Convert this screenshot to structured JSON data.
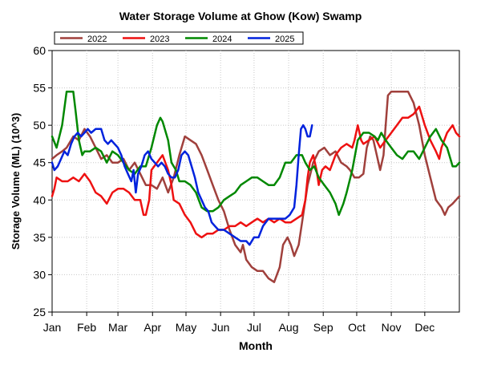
{
  "chart_data": {
    "type": "line",
    "title": "Water Storage Volume at Ghow (Kow) Swamp",
    "xlabel": "Month",
    "ylabel": "Storage Volume (ML) (10^3)",
    "x_unit": "day_of_year",
    "xlim": [
      1,
      366
    ],
    "ylim": [
      25,
      60
    ],
    "yticks": [
      25,
      30,
      35,
      40,
      45,
      50,
      55,
      60
    ],
    "month_labels": [
      "Jan",
      "Feb",
      "Mar",
      "Apr",
      "May",
      "Jun",
      "Jul",
      "Aug",
      "Sep",
      "Oct",
      "Nov",
      "Dec"
    ],
    "month_starts": [
      1,
      32,
      60,
      91,
      121,
      152,
      182,
      213,
      244,
      274,
      305,
      335
    ],
    "grid": true,
    "legend_position": "top-left",
    "series": [
      {
        "name": "2022",
        "color": "#a0403c",
        "points": [
          [
            1,
            45.5
          ],
          [
            5,
            46
          ],
          [
            10,
            46.5
          ],
          [
            14,
            47
          ],
          [
            20,
            48.5
          ],
          [
            25,
            48
          ],
          [
            30,
            49.5
          ],
          [
            35,
            48.5
          ],
          [
            40,
            47
          ],
          [
            45,
            45.5
          ],
          [
            50,
            46
          ],
          [
            55,
            45
          ],
          [
            60,
            45
          ],
          [
            65,
            45.5
          ],
          [
            70,
            44
          ],
          [
            75,
            45
          ],
          [
            80,
            43.5
          ],
          [
            85,
            42
          ],
          [
            90,
            42
          ],
          [
            95,
            41.5
          ],
          [
            100,
            43
          ],
          [
            105,
            41
          ],
          [
            110,
            43
          ],
          [
            115,
            46
          ],
          [
            120,
            48.5
          ],
          [
            125,
            48
          ],
          [
            130,
            47.5
          ],
          [
            135,
            46
          ],
          [
            140,
            44
          ],
          [
            145,
            42
          ],
          [
            150,
            40
          ],
          [
            155,
            38.5
          ],
          [
            160,
            36
          ],
          [
            165,
            34
          ],
          [
            170,
            33
          ],
          [
            172,
            34
          ],
          [
            175,
            32
          ],
          [
            180,
            31
          ],
          [
            185,
            30.5
          ],
          [
            190,
            30.5
          ],
          [
            195,
            29.5
          ],
          [
            200,
            29
          ],
          [
            205,
            31
          ],
          [
            208,
            34
          ],
          [
            212,
            35
          ],
          [
            215,
            34
          ],
          [
            218,
            32.5
          ],
          [
            222,
            34
          ],
          [
            225,
            37
          ],
          [
            230,
            42
          ],
          [
            235,
            45
          ],
          [
            240,
            46.5
          ],
          [
            245,
            47
          ],
          [
            250,
            46
          ],
          [
            255,
            46.5
          ],
          [
            260,
            45
          ],
          [
            265,
            44.5
          ],
          [
            268,
            44
          ],
          [
            272,
            43
          ],
          [
            276,
            43
          ],
          [
            280,
            43.5
          ],
          [
            283,
            47
          ],
          [
            286,
            48.5
          ],
          [
            289,
            48
          ],
          [
            292,
            46
          ],
          [
            295,
            44
          ],
          [
            298,
            46
          ],
          [
            300,
            50
          ],
          [
            302,
            54
          ],
          [
            305,
            54.5
          ],
          [
            310,
            54.5
          ],
          [
            315,
            54.5
          ],
          [
            320,
            54.5
          ],
          [
            325,
            53
          ],
          [
            330,
            50
          ],
          [
            335,
            46
          ],
          [
            340,
            43
          ],
          [
            345,
            40
          ],
          [
            350,
            39
          ],
          [
            353,
            38
          ],
          [
            356,
            39
          ],
          [
            360,
            39.5
          ],
          [
            363,
            40
          ],
          [
            366,
            40.5
          ]
        ]
      },
      {
        "name": "2023",
        "color": "#ee1111",
        "points": [
          [
            1,
            40.5
          ],
          [
            3,
            41.5
          ],
          [
            5,
            43
          ],
          [
            10,
            42.5
          ],
          [
            15,
            42.5
          ],
          [
            20,
            43
          ],
          [
            25,
            42.5
          ],
          [
            30,
            43.5
          ],
          [
            35,
            42.5
          ],
          [
            40,
            41
          ],
          [
            45,
            40.5
          ],
          [
            50,
            39.5
          ],
          [
            55,
            41
          ],
          [
            60,
            41.5
          ],
          [
            65,
            41.5
          ],
          [
            70,
            41
          ],
          [
            75,
            40
          ],
          [
            80,
            40
          ],
          [
            83,
            38
          ],
          [
            85,
            38
          ],
          [
            88,
            40
          ],
          [
            90,
            44
          ],
          [
            95,
            45
          ],
          [
            100,
            46
          ],
          [
            105,
            44
          ],
          [
            108,
            42
          ],
          [
            110,
            40
          ],
          [
            115,
            39.5
          ],
          [
            120,
            38
          ],
          [
            125,
            37
          ],
          [
            130,
            35.5
          ],
          [
            135,
            35
          ],
          [
            140,
            35.5
          ],
          [
            145,
            35.5
          ],
          [
            150,
            36
          ],
          [
            155,
            36
          ],
          [
            160,
            36.5
          ],
          [
            165,
            36.5
          ],
          [
            170,
            37
          ],
          [
            175,
            36.5
          ],
          [
            180,
            37
          ],
          [
            185,
            37.5
          ],
          [
            190,
            37
          ],
          [
            195,
            37.5
          ],
          [
            200,
            37
          ],
          [
            205,
            37.5
          ],
          [
            210,
            37
          ],
          [
            215,
            37
          ],
          [
            220,
            37.5
          ],
          [
            225,
            38
          ],
          [
            228,
            40
          ],
          [
            230,
            43
          ],
          [
            232,
            45
          ],
          [
            235,
            46
          ],
          [
            238,
            44
          ],
          [
            240,
            42
          ],
          [
            243,
            44
          ],
          [
            246,
            44.5
          ],
          [
            250,
            44
          ],
          [
            255,
            46
          ],
          [
            260,
            47
          ],
          [
            265,
            47.5
          ],
          [
            270,
            47
          ],
          [
            272,
            48
          ],
          [
            275,
            50
          ],
          [
            278,
            48
          ],
          [
            280,
            47.5
          ],
          [
            285,
            48
          ],
          [
            290,
            48.5
          ],
          [
            295,
            47
          ],
          [
            300,
            48
          ],
          [
            305,
            49
          ],
          [
            310,
            50
          ],
          [
            315,
            51
          ],
          [
            320,
            51
          ],
          [
            325,
            51.5
          ],
          [
            330,
            52.5
          ],
          [
            335,
            50
          ],
          [
            340,
            48
          ],
          [
            345,
            46.5
          ],
          [
            348,
            45.5
          ],
          [
            350,
            47
          ],
          [
            355,
            49
          ],
          [
            360,
            50
          ],
          [
            363,
            49
          ],
          [
            366,
            48.5
          ]
        ]
      },
      {
        "name": "2024",
        "color": "#008800",
        "points": [
          [
            1,
            48.5
          ],
          [
            5,
            47
          ],
          [
            10,
            50
          ],
          [
            14,
            54.5
          ],
          [
            20,
            54.5
          ],
          [
            22,
            52
          ],
          [
            25,
            48
          ],
          [
            28,
            46
          ],
          [
            30,
            46.5
          ],
          [
            35,
            46.5
          ],
          [
            40,
            47
          ],
          [
            45,
            46.5
          ],
          [
            50,
            45
          ],
          [
            55,
            46.5
          ],
          [
            60,
            46
          ],
          [
            65,
            45
          ],
          [
            70,
            44
          ],
          [
            75,
            43.5
          ],
          [
            80,
            44.5
          ],
          [
            85,
            44.5
          ],
          [
            90,
            47
          ],
          [
            95,
            50
          ],
          [
            98,
            51
          ],
          [
            100,
            50.5
          ],
          [
            105,
            48
          ],
          [
            108,
            45
          ],
          [
            112,
            44
          ],
          [
            115,
            42.5
          ],
          [
            120,
            42.5
          ],
          [
            125,
            42
          ],
          [
            130,
            41
          ],
          [
            135,
            39
          ],
          [
            140,
            38.5
          ],
          [
            145,
            38.5
          ],
          [
            150,
            39
          ],
          [
            155,
            40
          ],
          [
            160,
            40.5
          ],
          [
            165,
            41
          ],
          [
            170,
            42
          ],
          [
            175,
            42.5
          ],
          [
            180,
            43
          ],
          [
            185,
            43
          ],
          [
            190,
            42.5
          ],
          [
            195,
            42
          ],
          [
            200,
            42
          ],
          [
            205,
            43
          ],
          [
            210,
            45
          ],
          [
            215,
            45
          ],
          [
            220,
            46
          ],
          [
            225,
            46
          ],
          [
            228,
            45
          ],
          [
            232,
            44
          ],
          [
            236,
            44.5
          ],
          [
            240,
            43
          ],
          [
            245,
            42
          ],
          [
            250,
            41
          ],
          [
            255,
            39.5
          ],
          [
            258,
            38
          ],
          [
            262,
            39.5
          ],
          [
            265,
            41
          ],
          [
            270,
            44
          ],
          [
            275,
            48
          ],
          [
            280,
            49
          ],
          [
            285,
            49
          ],
          [
            290,
            48.5
          ],
          [
            293,
            48
          ],
          [
            296,
            49
          ],
          [
            300,
            48
          ],
          [
            305,
            47
          ],
          [
            310,
            46
          ],
          [
            315,
            45.5
          ],
          [
            320,
            46.5
          ],
          [
            325,
            46.5
          ],
          [
            330,
            45.5
          ],
          [
            335,
            47
          ],
          [
            340,
            48.5
          ],
          [
            345,
            49.5
          ],
          [
            350,
            48
          ],
          [
            355,
            47
          ],
          [
            358,
            45.5
          ],
          [
            360,
            44.5
          ],
          [
            363,
            44.5
          ],
          [
            366,
            45
          ]
        ]
      },
      {
        "name": "2025",
        "color": "#0022dd",
        "points": [
          [
            1,
            45
          ],
          [
            3,
            44
          ],
          [
            6,
            44.5
          ],
          [
            9,
            45.5
          ],
          [
            12,
            46.5
          ],
          [
            15,
            46
          ],
          [
            18,
            47.5
          ],
          [
            21,
            48.5
          ],
          [
            24,
            49
          ],
          [
            27,
            48.5
          ],
          [
            30,
            49
          ],
          [
            33,
            49.5
          ],
          [
            36,
            49
          ],
          [
            40,
            49.5
          ],
          [
            45,
            49.5
          ],
          [
            48,
            48
          ],
          [
            51,
            47.5
          ],
          [
            54,
            48
          ],
          [
            57,
            47.5
          ],
          [
            60,
            47
          ],
          [
            63,
            46
          ],
          [
            66,
            44.5
          ],
          [
            69,
            43.5
          ],
          [
            72,
            42.5
          ],
          [
            74,
            44
          ],
          [
            76,
            41
          ],
          [
            78,
            43.5
          ],
          [
            81,
            44.5
          ],
          [
            84,
            46
          ],
          [
            87,
            46.5
          ],
          [
            90,
            45.5
          ],
          [
            93,
            45
          ],
          [
            96,
            44.5
          ],
          [
            99,
            45
          ],
          [
            102,
            44.5
          ],
          [
            105,
            43.5
          ],
          [
            108,
            43
          ],
          [
            111,
            43
          ],
          [
            114,
            44
          ],
          [
            117,
            46
          ],
          [
            120,
            46.5
          ],
          [
            123,
            46
          ],
          [
            126,
            44.5
          ],
          [
            129,
            43
          ],
          [
            132,
            41
          ],
          [
            135,
            40
          ],
          [
            138,
            39
          ],
          [
            141,
            38.5
          ],
          [
            144,
            37
          ],
          [
            147,
            36.5
          ],
          [
            150,
            36
          ],
          [
            155,
            36
          ],
          [
            160,
            35.5
          ],
          [
            165,
            35
          ],
          [
            170,
            34.5
          ],
          [
            175,
            34.5
          ],
          [
            178,
            34
          ],
          [
            182,
            35
          ],
          [
            186,
            35
          ],
          [
            190,
            36.5
          ],
          [
            195,
            37.5
          ],
          [
            200,
            37.5
          ],
          [
            205,
            37.5
          ],
          [
            210,
            37.5
          ],
          [
            214,
            38
          ],
          [
            218,
            39
          ],
          [
            220,
            42
          ],
          [
            222,
            46
          ],
          [
            224,
            49.5
          ],
          [
            226,
            50
          ],
          [
            228,
            49.5
          ],
          [
            230,
            48.5
          ],
          [
            232,
            48.5
          ],
          [
            234,
            50
          ]
        ]
      }
    ]
  }
}
